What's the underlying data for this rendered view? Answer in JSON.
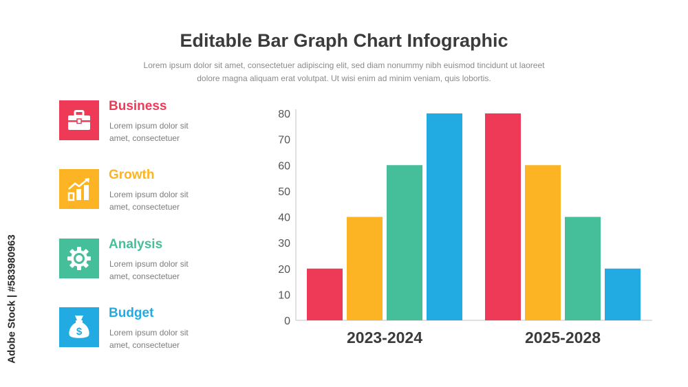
{
  "header": {
    "title": "Editable Bar Graph Chart Infographic",
    "subtitle_line1": "Lorem ipsum dolor sit amet, consectetuer adipiscing elit, sed diam nonummy nibh euismod tincidunt ut laoreet",
    "subtitle_line2": "dolore magna aliquam erat volutpat. Ut wisi enim ad minim veniam, quis lobortis."
  },
  "legend": [
    {
      "title": "Business",
      "desc_line1": "Lorem ipsum dolor sit",
      "desc_line2": "amet, consectetuer",
      "color": "#ee3a56",
      "icon": "briefcase-icon"
    },
    {
      "title": "Growth",
      "desc_line1": "Lorem ipsum dolor sit",
      "desc_line2": "amet, consectetuer",
      "color": "#fcb424",
      "icon": "growth-chart-icon"
    },
    {
      "title": "Analysis",
      "desc_line1": "Lorem ipsum dolor sit",
      "desc_line2": "amet, consectetuer",
      "color": "#44bf99",
      "icon": "gear-icon"
    },
    {
      "title": "Budget",
      "desc_line1": "Lorem ipsum dolor sit",
      "desc_line2": "amet, consectetuer",
      "color": "#22abe3",
      "icon": "money-bag-icon"
    }
  ],
  "watermark": "Adobe Stock | #583980963",
  "chart_data": {
    "type": "bar",
    "title": "Editable Bar Graph Chart Infographic",
    "xlabel": "",
    "ylabel": "",
    "ylim": [
      0,
      80
    ],
    "yticks": [
      0,
      10,
      20,
      30,
      40,
      50,
      60,
      70,
      80
    ],
    "categories": [
      "2023-2024",
      "2025-2028"
    ],
    "grid": false,
    "legend_position": "left",
    "series": [
      {
        "name": "Business",
        "color": "#ee3a56",
        "values": [
          20,
          80
        ]
      },
      {
        "name": "Growth",
        "color": "#fcb424",
        "values": [
          40,
          60
        ]
      },
      {
        "name": "Analysis",
        "color": "#44bf99",
        "values": [
          60,
          40
        ]
      },
      {
        "name": "Budget",
        "color": "#22abe3",
        "values": [
          80,
          20
        ]
      }
    ]
  }
}
